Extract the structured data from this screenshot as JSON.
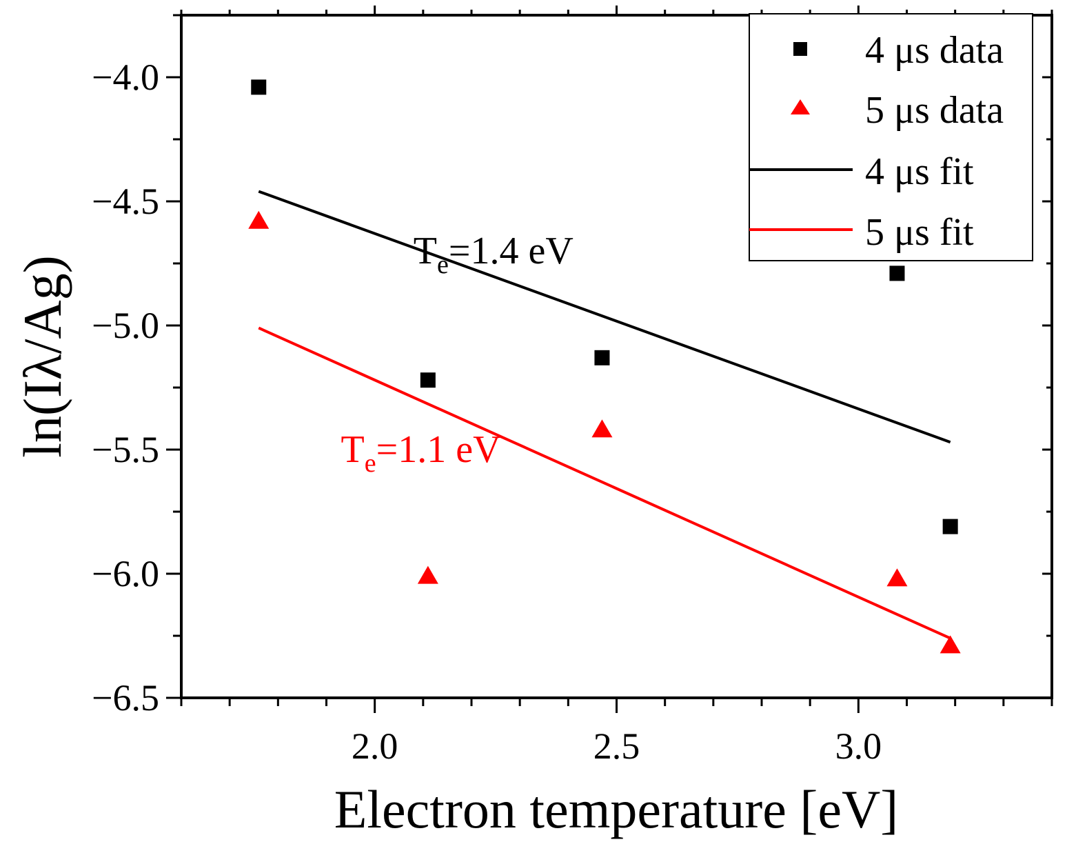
{
  "chart_data": {
    "type": "scatter",
    "xlabel": "Electron temperature [eV]",
    "ylabel": "ln(Iλ/Ag)",
    "xlim": [
      1.6,
      3.4
    ],
    "ylim": [
      -6.5,
      -3.75
    ],
    "xticks": [
      2.0,
      2.5,
      3.0
    ],
    "xtick_labels": [
      "2.0",
      "2.5",
      "3.0"
    ],
    "yticks": [
      -4.0,
      -4.5,
      -5.0,
      -5.5,
      -6.0,
      -6.5
    ],
    "ytick_labels": [
      "−4.0",
      "−4.5",
      "−5.0",
      "−5.5",
      "−6.0",
      "−6.5"
    ],
    "series": [
      {
        "name": "4 μs data",
        "kind": "scatter",
        "marker": "square",
        "color": "#000000",
        "points": [
          [
            1.76,
            -4.04
          ],
          [
            2.11,
            -5.22
          ],
          [
            2.47,
            -5.13
          ],
          [
            3.08,
            -4.79
          ],
          [
            3.19,
            -5.81
          ]
        ]
      },
      {
        "name": "5 μs data",
        "kind": "scatter",
        "marker": "triangle",
        "color": "#ff0000",
        "points": [
          [
            1.76,
            -4.58
          ],
          [
            2.11,
            -6.01
          ],
          [
            2.47,
            -5.42
          ],
          [
            3.08,
            -6.02
          ],
          [
            3.19,
            -6.29
          ]
        ]
      },
      {
        "name": "4 μs fit",
        "kind": "line",
        "color": "#000000",
        "points": [
          [
            1.76,
            -4.46
          ],
          [
            3.19,
            -5.47
          ]
        ]
      },
      {
        "name": "5 μs fit",
        "kind": "line",
        "color": "#ff0000",
        "points": [
          [
            1.76,
            -5.01
          ],
          [
            3.19,
            -6.26
          ]
        ]
      }
    ],
    "legend": {
      "placement": "top-right",
      "entries": [
        "4 μs data",
        "5 μs data",
        "4 μs fit",
        "5 μs fit"
      ]
    },
    "annotations": [
      {
        "main": "T",
        "sub": "e",
        "rest": "=1.4 eV",
        "color": "#000000",
        "x": 2.08,
        "y": -4.75
      },
      {
        "main": "T",
        "sub": "e",
        "rest": "=1.1 eV",
        "color": "#ff0000",
        "x": 1.93,
        "y": -5.55
      }
    ]
  }
}
